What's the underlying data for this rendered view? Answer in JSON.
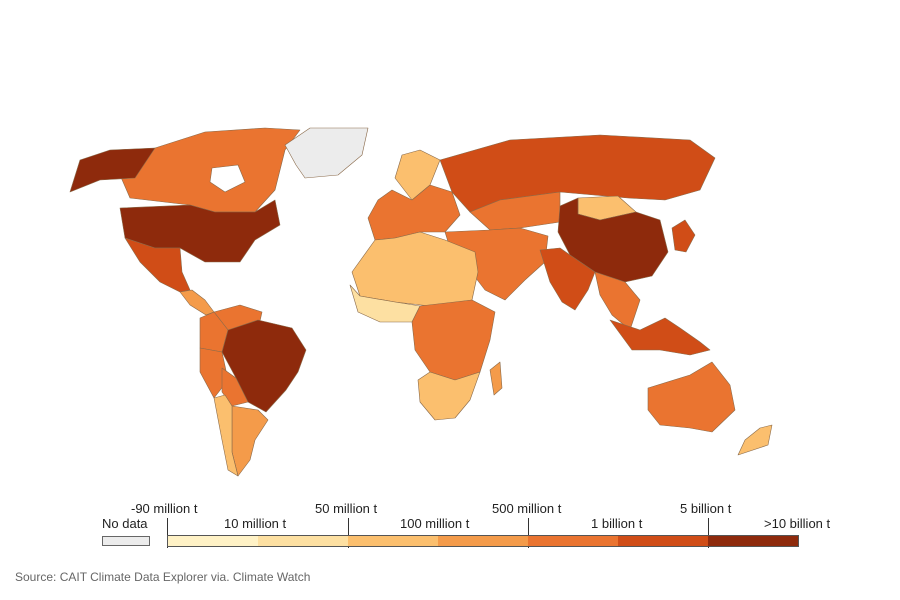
{
  "map": {
    "colors": {
      "no_data": "#ececec",
      "scale": [
        "#fff2c6",
        "#fde0a2",
        "#fbbf6e",
        "#f49b4a",
        "#ea7430",
        "#d04d17",
        "#8e2a0c"
      ]
    },
    "regions": [
      {
        "name": "Canada",
        "color": "#ea7430"
      },
      {
        "name": "United States",
        "color": "#8e2a0c"
      },
      {
        "name": "Alaska",
        "color": "#8e2a0c"
      },
      {
        "name": "Greenland",
        "color": "#ececec"
      },
      {
        "name": "Mexico",
        "color": "#d04d17"
      },
      {
        "name": "Central America",
        "color": "#f49b4a"
      },
      {
        "name": "Colombia",
        "color": "#ea7430"
      },
      {
        "name": "Venezuela",
        "color": "#ea7430"
      },
      {
        "name": "Brazil",
        "color": "#8e2a0c"
      },
      {
        "name": "Peru",
        "color": "#ea7430"
      },
      {
        "name": "Bolivia",
        "color": "#ea7430"
      },
      {
        "name": "Argentina",
        "color": "#f49b4a"
      },
      {
        "name": "Chile",
        "color": "#fbbf6e"
      },
      {
        "name": "Russia",
        "color": "#d04d17"
      },
      {
        "name": "Western Europe",
        "color": "#ea7430"
      },
      {
        "name": "Scandinavia",
        "color": "#fbbf6e"
      },
      {
        "name": "Kazakhstan",
        "color": "#ea7430"
      },
      {
        "name": "Mongolia",
        "color": "#fbbf6e"
      },
      {
        "name": "China",
        "color": "#8e2a0c"
      },
      {
        "name": "India",
        "color": "#d04d17"
      },
      {
        "name": "Middle East",
        "color": "#ea7430"
      },
      {
        "name": "North Africa",
        "color": "#fbbf6e"
      },
      {
        "name": "West Africa",
        "color": "#fde0a2"
      },
      {
        "name": "Central Africa",
        "color": "#ea7430"
      },
      {
        "name": "Southern Africa",
        "color": "#fbbf6e"
      },
      {
        "name": "Madagascar",
        "color": "#f49b4a"
      },
      {
        "name": "Indonesia",
        "color": "#d04d17"
      },
      {
        "name": "Southeast Asia",
        "color": "#ea7430"
      },
      {
        "name": "Japan",
        "color": "#d04d17"
      },
      {
        "name": "Australia",
        "color": "#ea7430"
      },
      {
        "name": "New Zealand",
        "color": "#fbbf6e"
      }
    ]
  },
  "legend": {
    "no_data": "No data",
    "upper_labels": [
      "-90 million t",
      "50 million t",
      "500 million t",
      "5 billion t"
    ],
    "lower_labels": [
      "10 million t",
      "100 million t",
      "1 billion t",
      ">10 billion t"
    ]
  },
  "source": "Source: CAIT Climate Data Explorer via. Climate Watch"
}
